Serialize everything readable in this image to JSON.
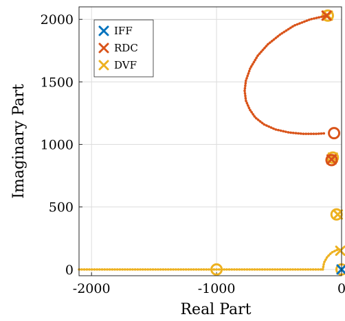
{
  "chart_data": {
    "type": "scatter",
    "title": "",
    "xlabel": "Real Part",
    "ylabel": "Imaginary Part",
    "xlim": [
      -2100,
      0
    ],
    "ylim": [
      -50,
      2100
    ],
    "xticks": [
      -2000,
      -1000,
      0
    ],
    "xtick_labels": [
      "-2000",
      "-1000",
      "0"
    ],
    "yticks": [
      0,
      500,
      1000,
      1500,
      2000
    ],
    "ytick_labels": [
      "0",
      "500",
      "1000",
      "1500",
      "2000"
    ],
    "grid": true,
    "legend_position": "top-left",
    "series": [
      {
        "name": "IFF",
        "color": "#0072BD",
        "poles": [
          [
            0,
            0
          ]
        ],
        "zeros": []
      },
      {
        "name": "RDC",
        "color": "#D95319",
        "poles": [
          [
            -120,
            2030
          ],
          [
            -80,
            880
          ]
        ],
        "zeros": [
          [
            -60,
            1090
          ],
          [
            -80,
            875
          ]
        ],
        "locus": [
          [
            -120,
            2030
          ],
          [
            -250,
            2000
          ],
          [
            -380,
            1950
          ],
          [
            -490,
            1880
          ],
          [
            -590,
            1800
          ],
          [
            -670,
            1710
          ],
          [
            -730,
            1610
          ],
          [
            -765,
            1510
          ],
          [
            -775,
            1430
          ],
          [
            -765,
            1350
          ],
          [
            -735,
            1280
          ],
          [
            -690,
            1215
          ],
          [
            -620,
            1160
          ],
          [
            -530,
            1120
          ],
          [
            -420,
            1095
          ],
          [
            -310,
            1085
          ],
          [
            -200,
            1085
          ],
          [
            -140,
            1088
          ]
        ]
      },
      {
        "name": "DVF",
        "color": "#EDB120",
        "poles": [
          [
            -110,
            2030
          ],
          [
            -70,
            895
          ],
          [
            -30,
            440
          ],
          [
            -10,
            150
          ]
        ],
        "zeros": [
          [
            -110,
            2030
          ],
          [
            -70,
            895
          ],
          [
            -40,
            440
          ],
          [
            -1000,
            0
          ],
          [
            0,
            0
          ]
        ],
        "locus_horizontal": {
          "x_start": -2100,
          "x_end": -150,
          "y": 0
        },
        "locus_arc": [
          [
            -150,
            0
          ],
          [
            -140,
            55
          ],
          [
            -115,
            100
          ],
          [
            -80,
            135
          ],
          [
            -40,
            155
          ],
          [
            -10,
            160
          ]
        ]
      }
    ]
  }
}
